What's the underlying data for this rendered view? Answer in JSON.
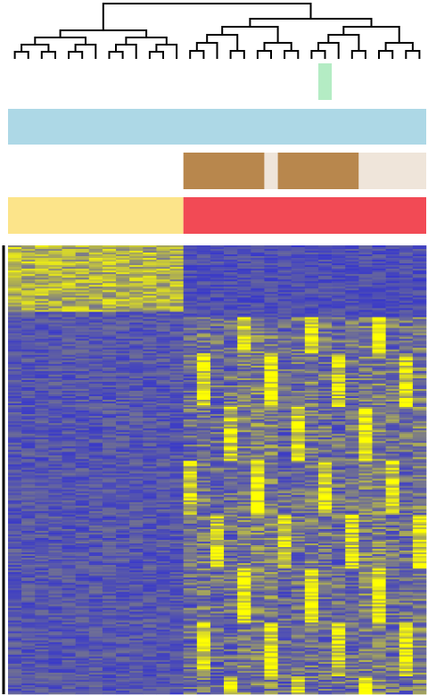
{
  "chart_data": {
    "type": "heatmap",
    "title": "",
    "xlabel": "",
    "ylabel": "",
    "n_columns": 31,
    "n_rows": 250,
    "color_scale": {
      "low": "#2a2ad8",
      "mid": "#7a7a88",
      "high": "#ffff00"
    },
    "value_range": [
      -1,
      1
    ],
    "column_dendrogram": {
      "two_main_clusters": [
        {
          "columns": [
            0,
            12
          ]
        },
        {
          "columns": [
            13,
            30
          ]
        }
      ]
    },
    "annotation_tracks": [
      {
        "segments": [
          {
            "from": 23,
            "to": 23,
            "color": "#b4ecc4"
          }
        ]
      },
      {
        "segments": [
          {
            "from": 0,
            "to": 30,
            "color": "#add8e6"
          }
        ]
      },
      {
        "segments": [
          {
            "from": 0,
            "to": 12,
            "color": "#ffffff"
          },
          {
            "from": 13,
            "to": 18,
            "color": "#b8874d"
          },
          {
            "from": 19,
            "to": 19,
            "color": "#efe5da"
          },
          {
            "from": 20,
            "to": 25,
            "color": "#b8874d"
          },
          {
            "from": 26,
            "to": 30,
            "color": "#efe5da"
          }
        ]
      },
      {
        "segments": [
          {
            "from": 0,
            "to": 12,
            "color": "#fce48a"
          },
          {
            "from": 13,
            "to": 30,
            "color": "#f24a55"
          }
        ]
      }
    ],
    "expression_pattern": {
      "group_a_columns": [
        0,
        12
      ],
      "group_a_high_rows": [
        0,
        36
      ],
      "group_b_columns": [
        13,
        30
      ],
      "group_b_high_rows": [
        40,
        250
      ]
    }
  }
}
